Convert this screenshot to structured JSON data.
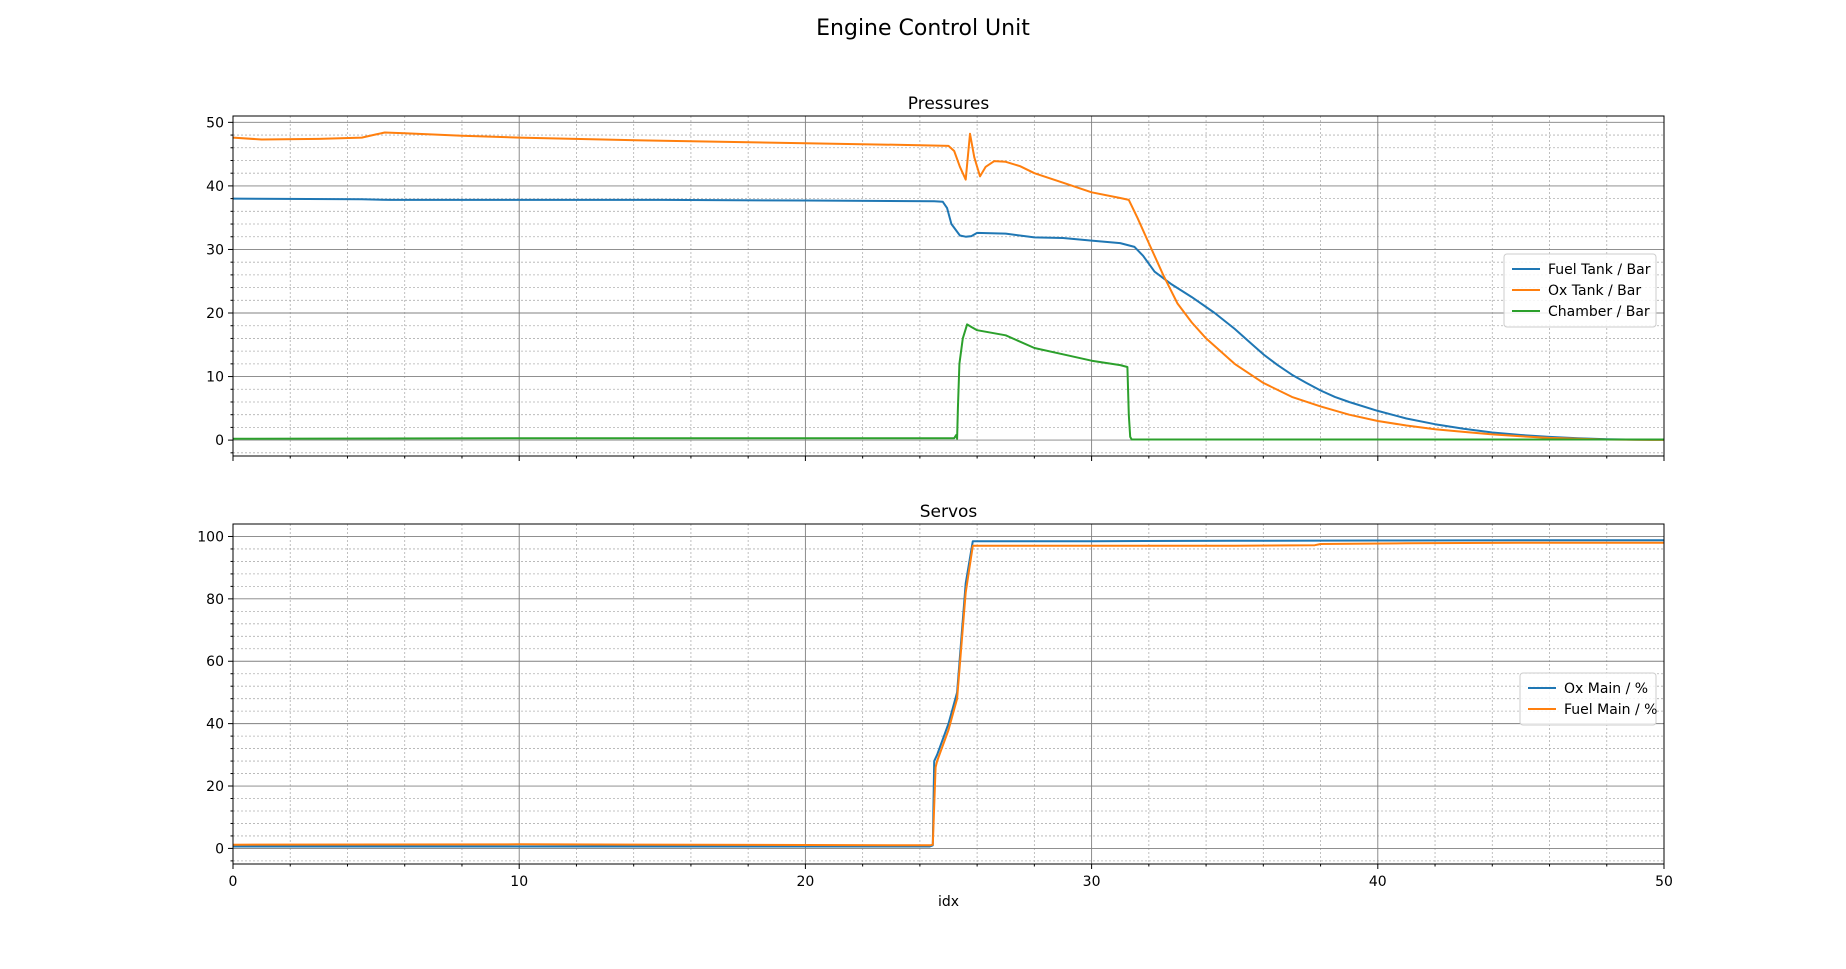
{
  "title": "Engine Control Unit",
  "chart_data": [
    {
      "type": "line",
      "title": "Pressures",
      "xlabel": "",
      "ylabel": "",
      "xlim": [
        0,
        50
      ],
      "ylim": [
        -2.5,
        51
      ],
      "xticks": [
        0,
        10,
        20,
        30,
        40,
        50
      ],
      "yticks": [
        0,
        10,
        20,
        30,
        40,
        50
      ],
      "show_xtick_labels": false,
      "grid": true,
      "minor_grid": true,
      "legend_position": "center-right",
      "series": [
        {
          "name": "Fuel Tank / Bar",
          "color": "#1f77b4",
          "x": [
            0,
            4.5,
            5.5,
            10,
            15,
            20,
            24.5,
            24.8,
            24.95,
            25.1,
            25.4,
            25.6,
            25.8,
            26,
            27,
            28,
            29,
            30,
            31,
            31.5,
            31.8,
            32.2,
            32.8,
            33.5,
            34.3,
            35,
            35.5,
            36,
            36.5,
            37,
            37.5,
            38,
            38.5,
            39,
            40,
            41,
            42,
            43,
            44,
            45,
            46,
            47,
            48,
            49,
            50
          ],
          "y": [
            38,
            37.9,
            37.8,
            37.8,
            37.8,
            37.7,
            37.6,
            37.5,
            36.5,
            34,
            32.2,
            32,
            32.1,
            32.6,
            32.5,
            31.9,
            31.8,
            31.4,
            31,
            30.4,
            29,
            26.5,
            24.5,
            22.5,
            20,
            17.5,
            15.5,
            13.5,
            11.8,
            10.3,
            9,
            7.8,
            6.8,
            6,
            4.6,
            3.4,
            2.5,
            1.8,
            1.2,
            0.8,
            0.5,
            0.3,
            0.15,
            0.08,
            0.05
          ]
        },
        {
          "name": "Ox Tank / Bar",
          "color": "#ff7f0e",
          "x": [
            0,
            1,
            3,
            4.5,
            5,
            5.3,
            6,
            8,
            10,
            15,
            20,
            24,
            25,
            25.2,
            25.4,
            25.6,
            25.75,
            25.9,
            26.1,
            26.3,
            26.6,
            27,
            27.5,
            28,
            29,
            30,
            31,
            31.3,
            31.6,
            32,
            32.5,
            33,
            33.5,
            34,
            35,
            36,
            37,
            38,
            39,
            40,
            41,
            42,
            43,
            44,
            45,
            46,
            47,
            48,
            49,
            50
          ],
          "y": [
            47.6,
            47.3,
            47.4,
            47.6,
            48.1,
            48.4,
            48.3,
            47.9,
            47.6,
            47.1,
            46.7,
            46.4,
            46.3,
            45.5,
            43,
            41,
            48.2,
            44.5,
            41.5,
            43,
            43.9,
            43.8,
            43.1,
            42,
            40.5,
            39,
            38.1,
            37.8,
            35,
            31,
            26,
            21.5,
            18.5,
            16,
            12,
            9,
            6.8,
            5.3,
            4,
            3,
            2.3,
            1.7,
            1.3,
            0.9,
            0.6,
            0.35,
            0.2,
            0.1,
            0.05,
            0.03
          ]
        },
        {
          "name": "Chamber / Bar",
          "color": "#2ca02c",
          "x": [
            0,
            10,
            20,
            25.2,
            25.27,
            25.3,
            25.33,
            25.38,
            25.5,
            25.65,
            25.8,
            26,
            27,
            28,
            29,
            30,
            31,
            31.25,
            31.3,
            31.35,
            31.4,
            35,
            40,
            45,
            50
          ],
          "y": [
            0.2,
            0.3,
            0.3,
            0.3,
            0.8,
            0.2,
            5,
            12,
            16,
            18.2,
            17.8,
            17.3,
            16.5,
            14.5,
            13.5,
            12.5,
            11.8,
            11.5,
            4,
            0.5,
            0.1,
            0.1,
            0.1,
            0.1,
            0.1
          ]
        }
      ]
    },
    {
      "type": "line",
      "title": "Servos",
      "xlabel": "idx",
      "ylabel": "",
      "xlim": [
        0,
        50
      ],
      "ylim": [
        -5,
        104
      ],
      "xticks": [
        0,
        10,
        20,
        30,
        40,
        50
      ],
      "yticks": [
        0,
        20,
        40,
        60,
        80,
        100
      ],
      "show_xtick_labels": true,
      "grid": true,
      "minor_grid": true,
      "legend_position": "center-right",
      "series": [
        {
          "name": "Ox Main / %",
          "color": "#1f77b4",
          "x": [
            0,
            24.35,
            24.45,
            24.5,
            24.6,
            25,
            25.3,
            25.6,
            25.85,
            26,
            30,
            35,
            40,
            45,
            50
          ],
          "y": [
            0.6,
            0.6,
            1,
            28,
            30,
            40,
            50,
            85,
            98.5,
            98.5,
            98.5,
            98.6,
            98.7,
            98.8,
            98.8
          ]
        },
        {
          "name": "Fuel Main / %",
          "color": "#ff7f0e",
          "x": [
            0,
            10,
            20,
            24.35,
            24.45,
            24.55,
            24.6,
            25,
            25.3,
            25.6,
            25.85,
            26,
            30,
            35,
            37.8,
            38,
            41,
            45,
            50
          ],
          "y": [
            1.2,
            1.3,
            1.1,
            1,
            1.2,
            26,
            28,
            38,
            48,
            82,
            97,
            97,
            97,
            97,
            97.2,
            97.6,
            97.8,
            98,
            98
          ]
        }
      ]
    }
  ]
}
